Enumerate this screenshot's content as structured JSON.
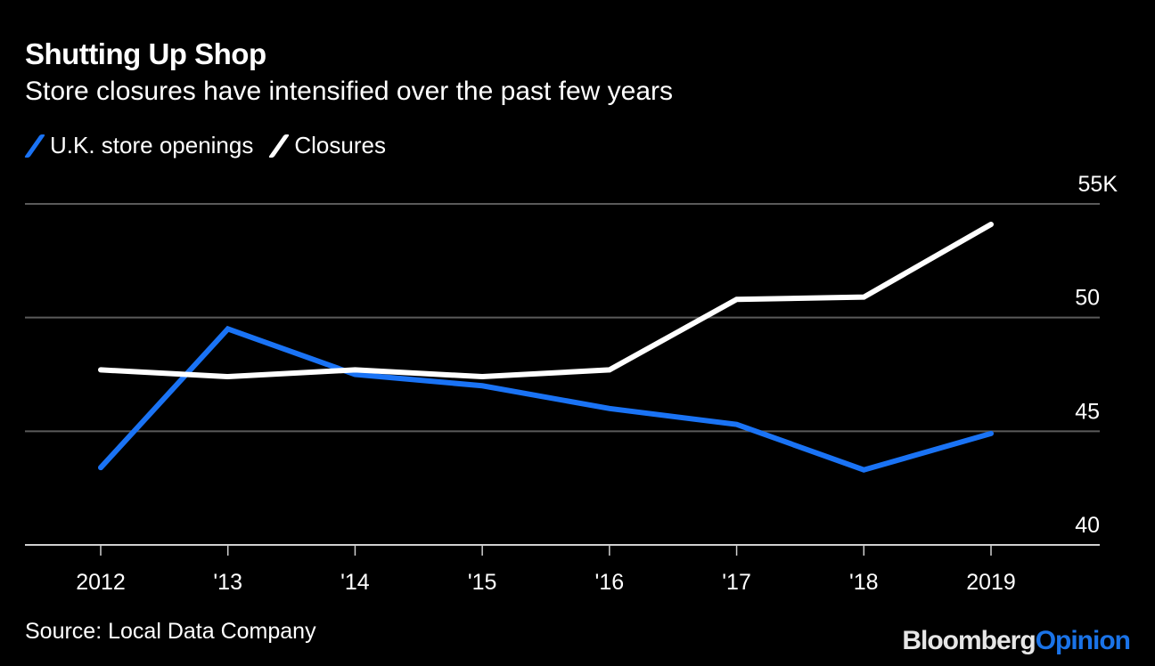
{
  "chart_data": {
    "type": "line",
    "title": "Shutting Up Shop",
    "subtitle": "Store closures have intensified over the past few years",
    "categories": [
      "2012",
      "'13",
      "'14",
      "'15",
      "'16",
      "'17",
      "'18",
      "2019"
    ],
    "x": [
      2012,
      2013,
      2014,
      2015,
      2016,
      2017,
      2018,
      2019
    ],
    "series": [
      {
        "name": "U.K. store openings",
        "color": "#1a73f5",
        "values": [
          43.4,
          49.5,
          47.5,
          47.0,
          46.0,
          45.3,
          43.3,
          44.9
        ]
      },
      {
        "name": "Closures",
        "color": "#ffffff",
        "values": [
          47.7,
          47.4,
          47.7,
          47.4,
          47.7,
          50.8,
          50.9,
          54.1
        ]
      }
    ],
    "yticks": [
      40,
      45,
      50,
      55
    ],
    "ytick_labels": [
      "40",
      "45",
      "50",
      "55K"
    ],
    "ylim": [
      40,
      55
    ],
    "xlabel": "",
    "ylabel": "",
    "grid": true,
    "legend_position": "top-left",
    "y_axis_side": "right",
    "source": "Source: Local Data Company"
  },
  "brand": {
    "part1": "Bloomberg",
    "part2": "Opinion"
  }
}
